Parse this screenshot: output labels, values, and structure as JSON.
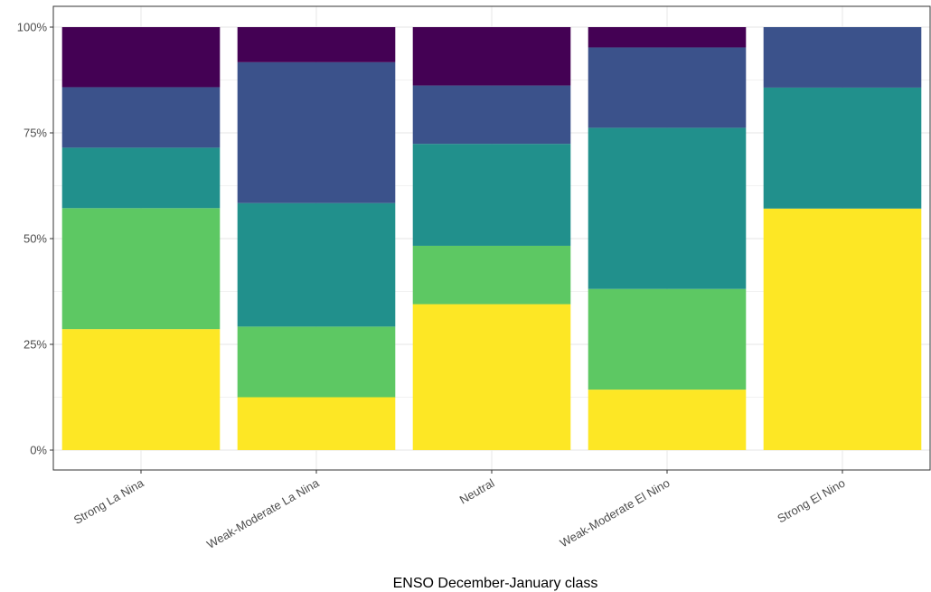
{
  "chart_data": {
    "type": "bar",
    "stacked": true,
    "percent": true,
    "xlabel": "ENSO December-January class",
    "ylabel": "",
    "categories": [
      "Strong La Nina",
      "Weak-Moderate La Nina",
      "Neutral",
      "Weak-Moderate El Nino",
      "Strong El Nino"
    ],
    "ylim": [
      0,
      1
    ],
    "yticks": [
      0,
      0.25,
      0.5,
      0.75,
      1.0
    ],
    "ytick_labels": [
      "0%",
      "25%",
      "50%",
      "75%",
      "100%"
    ],
    "grid": true,
    "legend": "none",
    "series": [
      {
        "color": "#FDE725",
        "values": [
          0.286,
          0.125,
          0.345,
          0.143,
          0.571
        ]
      },
      {
        "color": "#5DC863",
        "values": [
          0.286,
          0.167,
          0.138,
          0.238,
          0.0
        ]
      },
      {
        "color": "#21908C",
        "values": [
          0.143,
          0.292,
          0.241,
          0.381,
          0.286
        ]
      },
      {
        "color": "#3B528B",
        "values": [
          0.143,
          0.333,
          0.138,
          0.19,
          0.143
        ]
      },
      {
        "color": "#440154",
        "values": [
          0.142,
          0.083,
          0.138,
          0.048,
          0.0
        ]
      }
    ]
  }
}
